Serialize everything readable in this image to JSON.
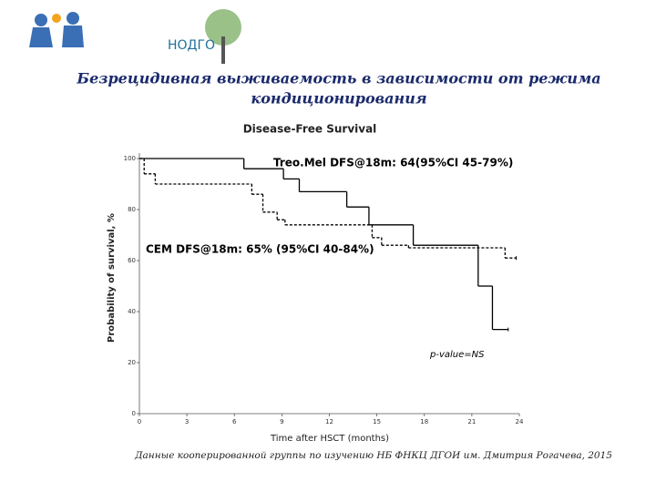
{
  "logo_text": "НОДГО",
  "slide_title": [
    "Безрецидивная выживаемость в зависимости от режима",
    "кондиционирования"
  ],
  "footer": "Данные кооперированной группы по изучению НБ ФНКЦ ДГОИ им. Дмитрия Рогачева, 2015",
  "chart_data": {
    "type": "step",
    "title": "Disease-Free Survival",
    "x_label": "Time after HSCT (months)",
    "y_label": "Probability of survival, %",
    "xlim": [
      0,
      24
    ],
    "xticks": [
      0,
      3,
      6,
      9,
      12,
      15,
      18,
      21,
      24
    ],
    "ylim": [
      0,
      100
    ],
    "yticks": [
      0,
      20,
      40,
      60,
      80,
      100
    ],
    "series": [
      {
        "color": "#000000",
        "style": "solid",
        "x": [
          0,
          6.6,
          9.1,
          10.1,
          13.1,
          14.5,
          17.3,
          21.4,
          22.3,
          23.3
        ],
        "values": [
          100,
          96,
          92,
          87,
          81,
          74,
          66,
          50,
          33,
          33
        ]
      },
      {
        "color": "#000000",
        "style": "dashed",
        "x": [
          0,
          0.3,
          1.0,
          7.1,
          7.8,
          8.7,
          9.2,
          14.7,
          15.3,
          17.0,
          23.1,
          23.8
        ],
        "values": [
          100,
          94,
          90,
          86,
          79,
          76,
          74,
          69,
          66,
          65,
          61,
          61
        ]
      }
    ],
    "annotations": [
      "Treo.Mel DFS@18m: 64(95%CI 45-79%)",
      "CEM DFS@18m: 65% (95%CI 40-84%)",
      "p-value=NS"
    ]
  }
}
